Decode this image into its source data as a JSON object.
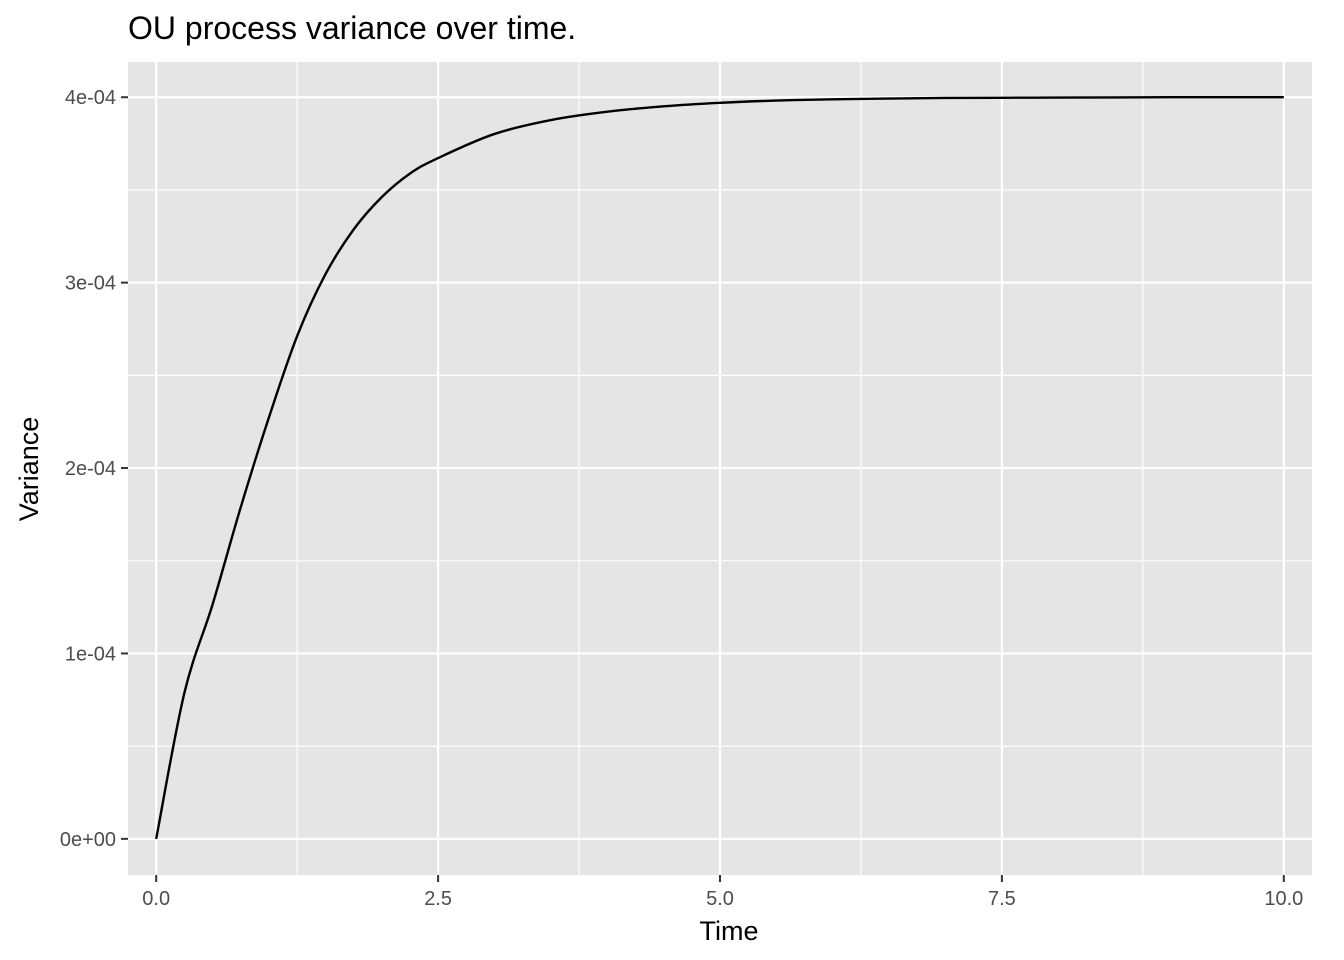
{
  "chart_data": {
    "type": "line",
    "title": "OU process variance over time.",
    "xlabel": "Time",
    "ylabel": "Variance",
    "xlim": [
      -0.25,
      10.25
    ],
    "ylim": [
      -1.95e-05,
      0.000419
    ],
    "x_ticks": [
      0,
      2.5,
      5,
      7.5,
      10
    ],
    "x_tick_labels": [
      "0.0",
      "2.5",
      "5.0",
      "7.5",
      "10.0"
    ],
    "x_minor_ticks": [
      1.25,
      3.75,
      6.25,
      8.75
    ],
    "y_ticks": [
      0,
      0.0001,
      0.0002,
      0.0003,
      0.0004
    ],
    "y_tick_labels": [
      "0e+00",
      "1e-04",
      "2e-04",
      "3e-04",
      "4e-04"
    ],
    "y_minor_ticks": [
      5e-05,
      0.00015,
      0.00025,
      0.00035
    ],
    "grid": true,
    "legend": "none",
    "series": [
      {
        "color": "#000000",
        "x": [
          0,
          0.25,
          0.5,
          0.75,
          1,
          1.25,
          1.5,
          1.75,
          2,
          2.25,
          2.5,
          3,
          3.5,
          4,
          4.5,
          5,
          5.5,
          6,
          6.5,
          7,
          7.5,
          8,
          8.5,
          9,
          9.5,
          10
        ],
        "y": [
          0,
          7.87e-05,
          0.0001264,
          0.0001789,
          0.0002273,
          0.0002712,
          0.0003044,
          0.0003286,
          0.0003461,
          0.0003588,
          0.0003672,
          0.0003802,
          0.0003877,
          0.0003922,
          0.0003951,
          0.000397,
          0.0003982,
          0.0003989,
          0.0003993,
          0.0003996,
          0.0003997,
          0.0003998,
          0.0003999,
          0.0004,
          0.0004,
          0.0004
        ]
      }
    ]
  },
  "colors": {
    "panel_background": "#e5e5e5",
    "grid_line": "#ffffff",
    "axis_tick": "#333333",
    "tick_label": "#4d4d4d",
    "line": "#000000"
  }
}
